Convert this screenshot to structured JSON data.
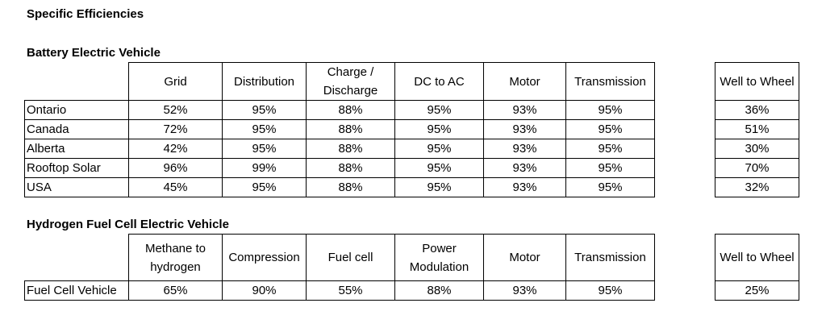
{
  "title": "Specific Efficiencies",
  "bev": {
    "heading": "Battery Electric Vehicle",
    "columns": [
      "Grid",
      "Distribution",
      "Charge / Discharge",
      "DC to AC",
      "Motor",
      "Transmission"
    ],
    "wtw_header": "Well to Wheel",
    "rows": [
      {
        "label": "Ontario",
        "values": [
          "52%",
          "95%",
          "88%",
          "95%",
          "93%",
          "95%"
        ],
        "wtw": "36%"
      },
      {
        "label": "Canada",
        "values": [
          "72%",
          "95%",
          "88%",
          "95%",
          "93%",
          "95%"
        ],
        "wtw": "51%"
      },
      {
        "label": "Alberta",
        "values": [
          "42%",
          "95%",
          "88%",
          "95%",
          "93%",
          "95%"
        ],
        "wtw": "30%"
      },
      {
        "label": "Rooftop Solar",
        "values": [
          "96%",
          "99%",
          "88%",
          "95%",
          "93%",
          "95%"
        ],
        "wtw": "70%"
      },
      {
        "label": "USA",
        "values": [
          "45%",
          "95%",
          "88%",
          "95%",
          "93%",
          "95%"
        ],
        "wtw": "32%"
      }
    ]
  },
  "fcev": {
    "heading": "Hydrogen Fuel Cell Electric Vehicle",
    "columns": [
      "Methane to hydrogen",
      "Compression",
      "Fuel cell",
      "Power Modulation",
      "Motor",
      "Transmission"
    ],
    "wtw_header": "Well to Wheel",
    "rows": [
      {
        "label": "Fuel Cell Vehicle",
        "values": [
          "65%",
          "90%",
          "55%",
          "88%",
          "93%",
          "95%"
        ],
        "wtw": "25%"
      }
    ]
  }
}
